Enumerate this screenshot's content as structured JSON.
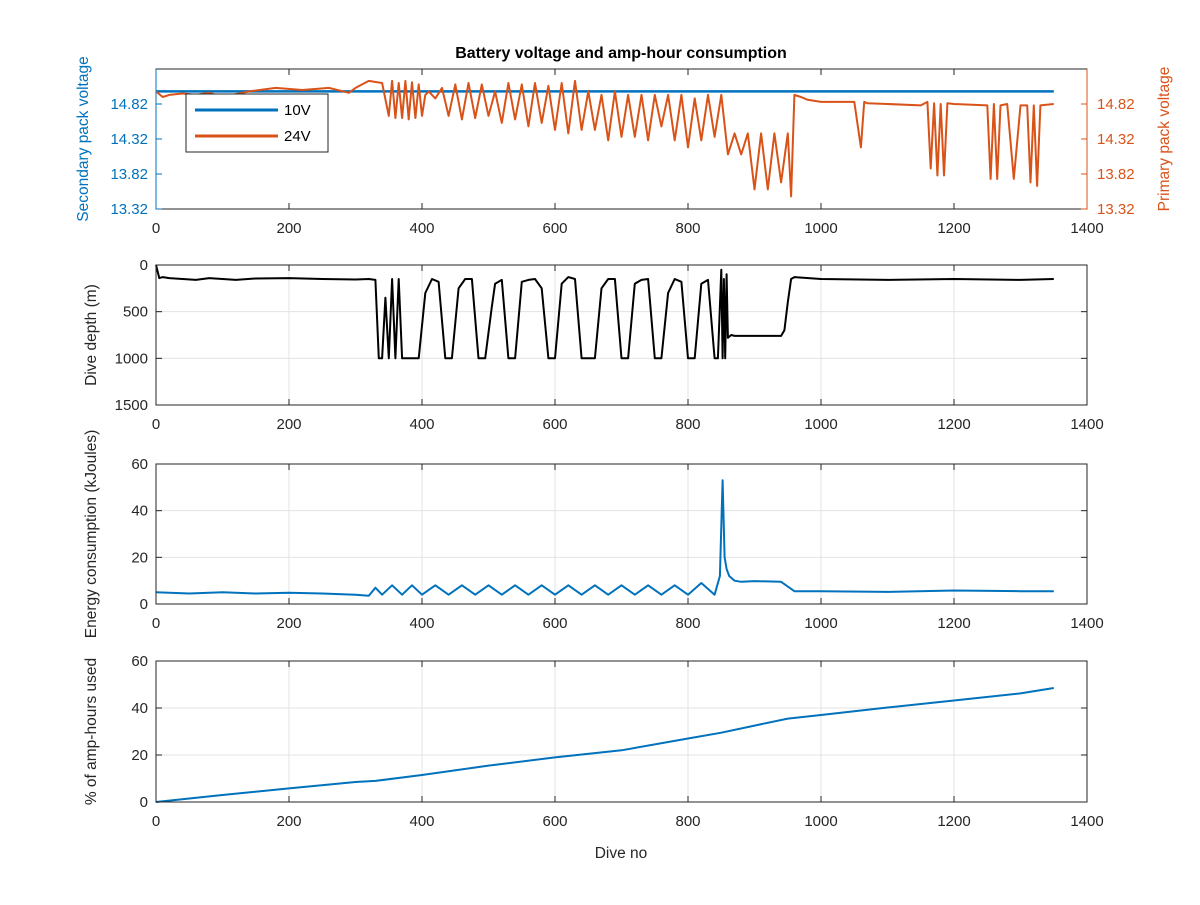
{
  "figure": {
    "title": "Battery voltage and amp-hour consumption",
    "xlabel": "Dive no"
  },
  "chart_data": [
    {
      "type": "line",
      "title": "Battery voltage and amp-hour consumption",
      "xlabel": "",
      "ylabel_left": "Secondary pack voltage",
      "ylabel_right": "Primary pack voltage",
      "xlim": [
        0,
        1400
      ],
      "ylim_left": [
        13.32,
        15.32
      ],
      "ylim_right": [
        13.32,
        15.32
      ],
      "xticks": [
        0,
        200,
        400,
        600,
        800,
        1000,
        1200,
        1400
      ],
      "yticks_left": [
        13.32,
        13.82,
        14.32,
        14.82
      ],
      "yticks_right": [
        13.32,
        13.82,
        14.32,
        14.82
      ],
      "ytick_labels_left": [
        "13.32",
        "13.82",
        "14.32",
        "14.82"
      ],
      "ytick_labels_right": [
        "13.32",
        "13.82",
        "14.32",
        "14.82"
      ],
      "grid": false,
      "legend_position": "top-left",
      "series": [
        {
          "name": "10V",
          "axis": "left",
          "color": "#0072BD",
          "x": [
            0,
            1350
          ],
          "y": [
            15.0,
            15.0
          ]
        },
        {
          "name": "24V",
          "axis": "right",
          "color": "#D95319",
          "x": [
            0,
            10,
            20,
            40,
            60,
            80,
            100,
            140,
            180,
            220,
            260,
            290,
            300,
            320,
            340,
            350,
            355,
            360,
            365,
            370,
            375,
            380,
            385,
            390,
            395,
            400,
            405,
            410,
            420,
            430,
            440,
            450,
            460,
            470,
            480,
            490,
            500,
            510,
            520,
            530,
            540,
            550,
            560,
            570,
            580,
            590,
            600,
            610,
            620,
            630,
            640,
            650,
            660,
            670,
            680,
            690,
            700,
            710,
            720,
            730,
            740,
            750,
            760,
            770,
            780,
            790,
            800,
            810,
            820,
            830,
            840,
            850,
            860,
            870,
            880,
            890,
            900,
            910,
            920,
            930,
            940,
            950,
            955,
            960,
            970,
            980,
            1000,
            1050,
            1060,
            1065,
            1070,
            1100,
            1150,
            1160,
            1165,
            1170,
            1175,
            1180,
            1185,
            1190,
            1200,
            1250,
            1255,
            1260,
            1265,
            1270,
            1280,
            1290,
            1300,
            1310,
            1315,
            1320,
            1325,
            1330,
            1350
          ],
          "y": [
            15.0,
            14.92,
            14.95,
            14.97,
            14.95,
            14.98,
            14.92,
            15.0,
            15.05,
            15.02,
            15.05,
            14.98,
            15.05,
            15.15,
            15.12,
            14.65,
            15.15,
            14.62,
            15.12,
            14.62,
            15.15,
            14.6,
            15.13,
            14.62,
            15.1,
            14.65,
            14.95,
            15.0,
            14.9,
            15.05,
            14.65,
            15.1,
            14.6,
            15.12,
            14.62,
            15.1,
            14.65,
            15.0,
            14.55,
            15.12,
            14.6,
            15.1,
            14.5,
            15.12,
            14.55,
            15.08,
            14.45,
            15.12,
            14.4,
            15.15,
            14.45,
            15.0,
            14.45,
            14.95,
            14.3,
            15.0,
            14.35,
            14.95,
            14.35,
            14.95,
            14.3,
            14.95,
            14.5,
            14.95,
            14.3,
            14.95,
            14.2,
            14.9,
            14.3,
            14.95,
            14.35,
            14.95,
            14.1,
            14.4,
            14.1,
            14.4,
            13.6,
            14.4,
            13.6,
            14.4,
            13.7,
            14.4,
            13.5,
            14.95,
            14.92,
            14.88,
            14.85,
            14.85,
            14.2,
            14.85,
            14.83,
            14.82,
            14.8,
            14.85,
            13.9,
            14.83,
            13.8,
            14.82,
            13.8,
            14.83,
            14.82,
            14.8,
            13.75,
            14.82,
            13.75,
            14.8,
            14.82,
            13.75,
            14.8,
            14.8,
            13.7,
            14.8,
            13.65,
            14.8,
            14.82
          ]
        }
      ]
    },
    {
      "type": "line",
      "xlabel": "",
      "ylabel": "Dive depth (m)",
      "xlim": [
        0,
        1400
      ],
      "ylim": [
        0,
        1500
      ],
      "y_reversed": true,
      "xticks": [
        0,
        200,
        400,
        600,
        800,
        1000,
        1200,
        1400
      ],
      "yticks": [
        0,
        500,
        1000,
        1500
      ],
      "grid": true,
      "series": [
        {
          "color": "#000000",
          "x": [
            0,
            5,
            10,
            20,
            40,
            60,
            80,
            100,
            120,
            150,
            200,
            250,
            300,
            320,
            330,
            335,
            340,
            345,
            350,
            355,
            360,
            365,
            370,
            375,
            385,
            395,
            405,
            415,
            425,
            435,
            445,
            455,
            465,
            475,
            485,
            495,
            505,
            510,
            520,
            530,
            540,
            550,
            560,
            570,
            580,
            590,
            600,
            610,
            620,
            630,
            640,
            660,
            670,
            680,
            690,
            700,
            710,
            720,
            730,
            740,
            750,
            760,
            770,
            780,
            790,
            800,
            810,
            820,
            830,
            840,
            845,
            850,
            852,
            854,
            856,
            858,
            860,
            865,
            870,
            880,
            900,
            920,
            940,
            945,
            950,
            955,
            960,
            1000,
            1100,
            1200,
            1300,
            1350
          ],
          "y": [
            0,
            140,
            130,
            140,
            150,
            160,
            140,
            150,
            160,
            145,
            140,
            150,
            155,
            150,
            160,
            1000,
            1000,
            350,
            1000,
            150,
            1000,
            150,
            1000,
            1000,
            1000,
            1000,
            300,
            150,
            180,
            1000,
            1000,
            250,
            150,
            150,
            1000,
            1000,
            450,
            200,
            160,
            1000,
            1000,
            180,
            160,
            150,
            250,
            1000,
            1000,
            200,
            130,
            150,
            1000,
            1000,
            250,
            150,
            150,
            1000,
            1000,
            200,
            160,
            150,
            1000,
            1000,
            300,
            150,
            180,
            1000,
            1000,
            200,
            160,
            1000,
            1000,
            50,
            1000,
            150,
            1000,
            100,
            780,
            750,
            760,
            760,
            760,
            760,
            760,
            700,
            400,
            150,
            130,
            150,
            160,
            150,
            160,
            150
          ]
        }
      ]
    },
    {
      "type": "line",
      "xlabel": "",
      "ylabel": "Energy consumption (kJoules)",
      "xlim": [
        0,
        1400
      ],
      "ylim": [
        0,
        60
      ],
      "xticks": [
        0,
        200,
        400,
        600,
        800,
        1000,
        1200,
        1400
      ],
      "yticks": [
        0,
        20,
        40,
        60
      ],
      "grid": true,
      "series": [
        {
          "color": "#0072BD",
          "x": [
            0,
            50,
            100,
            150,
            200,
            250,
            300,
            320,
            330,
            340,
            355,
            370,
            385,
            400,
            420,
            440,
            460,
            480,
            500,
            520,
            540,
            560,
            580,
            600,
            620,
            640,
            660,
            680,
            700,
            720,
            740,
            760,
            780,
            800,
            820,
            840,
            848,
            852,
            855,
            858,
            862,
            870,
            880,
            900,
            940,
            960,
            1000,
            1100,
            1200,
            1300,
            1350
          ],
          "y": [
            5,
            4.5,
            5,
            4.5,
            4.8,
            4.5,
            4,
            3.5,
            7,
            4,
            8,
            4,
            8,
            4,
            8,
            4,
            8,
            4,
            8,
            4,
            8,
            4,
            8,
            4,
            8,
            4,
            8,
            4,
            8,
            4,
            8,
            4,
            8,
            4,
            9,
            4,
            12,
            53,
            20,
            15,
            12,
            10,
            9.5,
            9.8,
            9.5,
            5.5,
            5.5,
            5.2,
            5.8,
            5.5,
            5.5
          ]
        }
      ]
    },
    {
      "type": "line",
      "xlabel": "Dive no",
      "ylabel": "% of amp-hours used",
      "xlim": [
        0,
        1400
      ],
      "ylim": [
        0,
        60
      ],
      "xticks": [
        0,
        200,
        400,
        600,
        800,
        1000,
        1200,
        1400
      ],
      "yticks": [
        0,
        20,
        40,
        60
      ],
      "grid": true,
      "series": [
        {
          "color": "#0072BD",
          "x": [
            0,
            100,
            200,
            300,
            330,
            400,
            500,
            600,
            700,
            800,
            850,
            900,
            950,
            1000,
            1100,
            1200,
            1300,
            1350
          ],
          "y": [
            0,
            3,
            5.8,
            8.5,
            9,
            11.5,
            15.5,
            19,
            22,
            27,
            29.5,
            32.5,
            35.5,
            37,
            40.2,
            43.2,
            46.2,
            48.5
          ]
        }
      ]
    }
  ]
}
